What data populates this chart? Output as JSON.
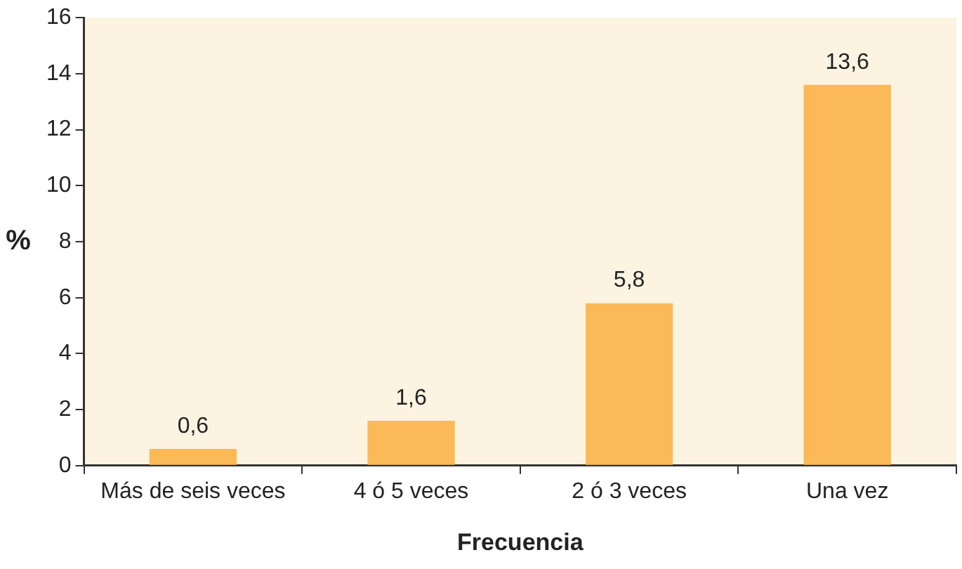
{
  "chart_data": {
    "type": "bar",
    "xlabel": "Frecuencia",
    "ylabel": "%",
    "categories": [
      "Más de seis veces",
      "4 ó 5 veces",
      "2 ó 3 veces",
      "Una vez"
    ],
    "values": [
      0.6,
      1.6,
      5.8,
      13.6
    ],
    "value_labels": [
      "0,6",
      "1,6",
      "5,8",
      "13,6"
    ],
    "color": "#fbb957",
    "ylim": [
      0,
      16
    ],
    "yticks": [
      0,
      2,
      4,
      6,
      8,
      10,
      12,
      14,
      16
    ],
    "grid": false,
    "legend": false
  }
}
